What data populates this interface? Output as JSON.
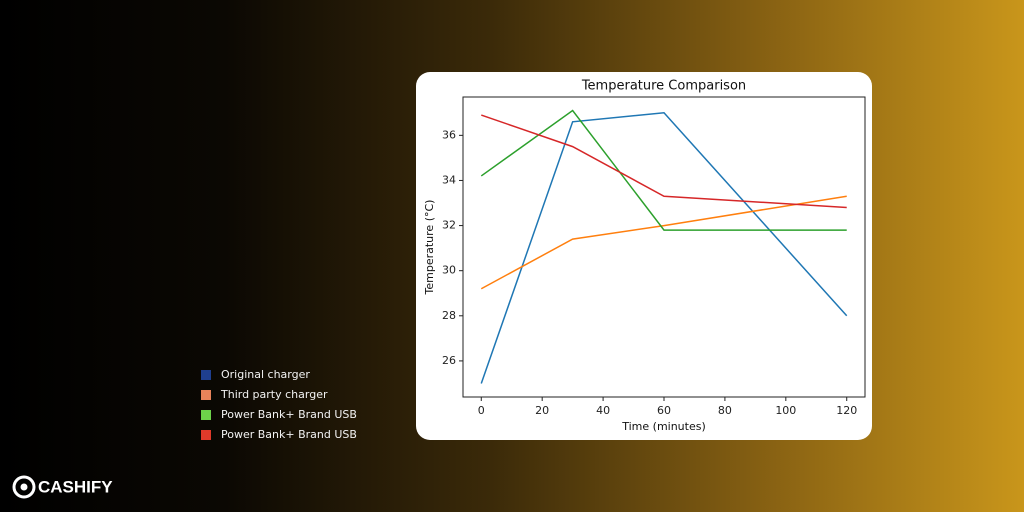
{
  "chart_data": {
    "type": "line",
    "title": "Temperature Comparison",
    "x_label": "Time (minutes)",
    "y_label": "Temperature (°C)",
    "x": [
      0,
      30,
      60,
      120
    ],
    "series": [
      {
        "name": "Original charger",
        "color": "#1f77b4",
        "legend_color": "#1f3f8f",
        "values": [
          25,
          36.6,
          37,
          28
        ]
      },
      {
        "name": "Third party charger",
        "color": "#ff7f0e",
        "legend_color": "#e8835a",
        "values": [
          29.2,
          31.4,
          32.0,
          33.3
        ]
      },
      {
        "name": "Power Bank+ Brand USB",
        "color": "#2ca02c",
        "legend_color": "#6dd24a",
        "values": [
          34.2,
          37.1,
          31.8,
          31.8
        ]
      },
      {
        "name": "Power Bank+ Brand USB",
        "color": "#d62728",
        "legend_color": "#e03a2a",
        "values": [
          36.9,
          35.5,
          33.3,
          32.8
        ]
      }
    ],
    "xlim": [
      -6,
      126
    ],
    "xticks": [
      0,
      20,
      40,
      60,
      80,
      100,
      120
    ],
    "ylim": [
      24.4,
      37.7
    ],
    "yticks": [
      26,
      28,
      30,
      32,
      34,
      36
    ],
    "grid": false
  },
  "brand": "CASHIFY"
}
